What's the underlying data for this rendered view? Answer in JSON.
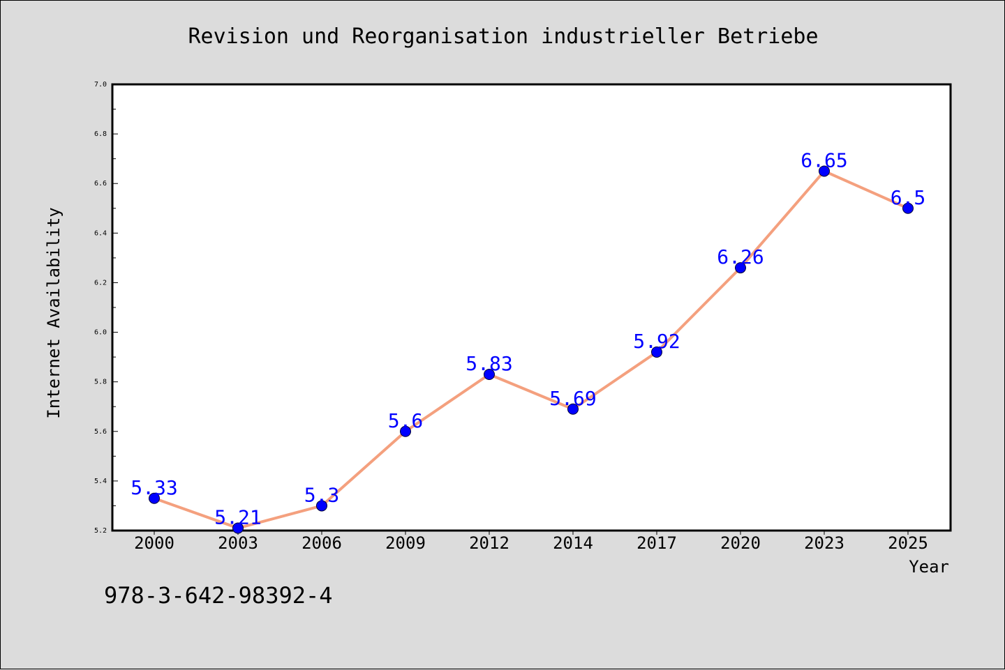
{
  "caption": "978-3-642-98392-4",
  "chart_data": {
    "type": "line",
    "title": "Revision und Reorganisation industrieller Betriebe",
    "xlabel": "Year",
    "ylabel": "Internet Availability",
    "categories": [
      "2000",
      "2003",
      "2006",
      "2009",
      "2012",
      "2014",
      "2017",
      "2020",
      "2023",
      "2025"
    ],
    "values": [
      5.33,
      5.21,
      5.3,
      5.6,
      5.83,
      5.69,
      5.92,
      6.26,
      6.65,
      6.5
    ],
    "data_labels": [
      "5.33",
      "5.21",
      "5.3",
      "5.6",
      "5.83",
      "5.69",
      "5.92",
      "6.26",
      "6.65",
      "6.5"
    ],
    "ylim": [
      5.2,
      7.0
    ],
    "yticks": [
      "5.2",
      "5.4",
      "5.6",
      "5.8",
      "6.0",
      "6.2",
      "6.4",
      "6.6",
      "6.8",
      "7.0"
    ],
    "grid": false,
    "legend": "none",
    "colors": {
      "line": "#f4a07e",
      "marker": "#0000ff",
      "label": "#0000ff",
      "plot_background": "#ffffff",
      "figure_background": "#dcdcdc"
    }
  }
}
